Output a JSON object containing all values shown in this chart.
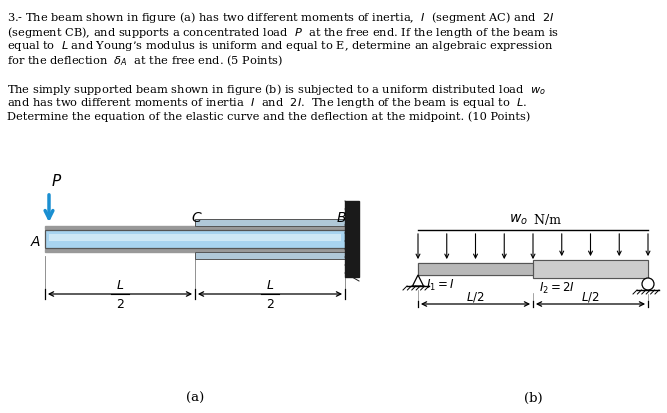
{
  "bg_color": "#ffffff",
  "beam_a_light": "#a8d4f0",
  "beam_a_mid": "#c5e3f5",
  "beam_a_dark": "#8ab0c8",
  "beam_b_left_color": "#b8b8b8",
  "beam_b_right_color": "#cccccc",
  "wall_color": "#1a1a1a",
  "arrow_color": "#1a8fd1",
  "text_color": "#000000",
  "fig_a_caption": "(a)",
  "fig_b_caption": "(b)",
  "line1": "3.- The beam shown in figure (a) has two different moments of inertia,  $I$  (segment AC) and  $2I$",
  "line2": "(segment CB), and supports a concentrated load  $P$  at the free end. If the length of the beam is",
  "line3": "equal to  $L$ and Young’s modulus is uniform and equal to E, determine an algebraic expression",
  "line4": "for the deflection  $\\delta_A$  at the free end. (5 Points)",
  "line5": "The simply supported beam shown in figure (b) is subjected to a uniform distributed load  $w_o$",
  "line6": "and has two different moments of inertia  $I$  and  $2I$.  The length of the beam is equal to  $L$.",
  "line7": "Determine the equation of the elastic curve and the deflection at the midpoint. (10 Points)"
}
